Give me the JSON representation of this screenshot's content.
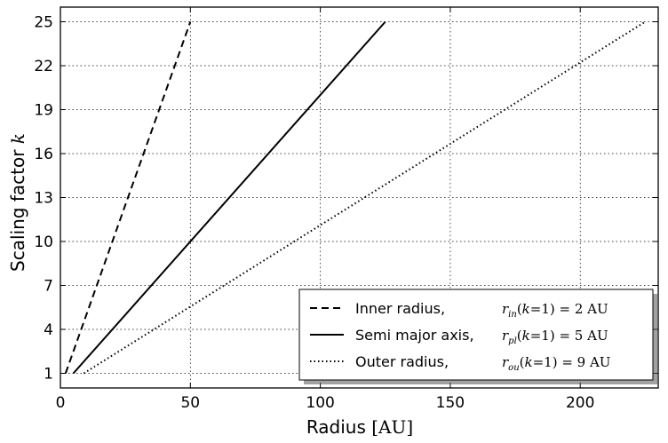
{
  "chart_data": {
    "type": "line",
    "xlabel": "Radius",
    "xunit": "[AU]",
    "ylabel": "Scaling factor",
    "ylabel_var": "k",
    "xlim": [
      0,
      230
    ],
    "ylim": [
      0,
      26
    ],
    "xticks": [
      0,
      50,
      100,
      150,
      200
    ],
    "yticks": [
      1,
      4,
      7,
      10,
      13,
      16,
      19,
      22,
      25
    ],
    "grid": true,
    "grid_style": "dotted",
    "legend_position": "bottom-right",
    "series": [
      {
        "name": "Inner radius,",
        "equation": "r_in(k=1) = 2 AU",
        "line_style": "dashed",
        "color": "#000000",
        "x": [
          2,
          50
        ],
        "y": [
          1,
          25
        ]
      },
      {
        "name": "Semi major axis,",
        "equation": "r_pl(k=1) = 5 AU",
        "line_style": "solid",
        "color": "#000000",
        "x": [
          5,
          125
        ],
        "y": [
          1,
          25
        ]
      },
      {
        "name": "Outer radius,",
        "equation": "r_ou(k=1) = 9 AU",
        "line_style": "dotted",
        "color": "#000000",
        "x": [
          9,
          225
        ],
        "y": [
          1,
          25
        ]
      }
    ]
  }
}
